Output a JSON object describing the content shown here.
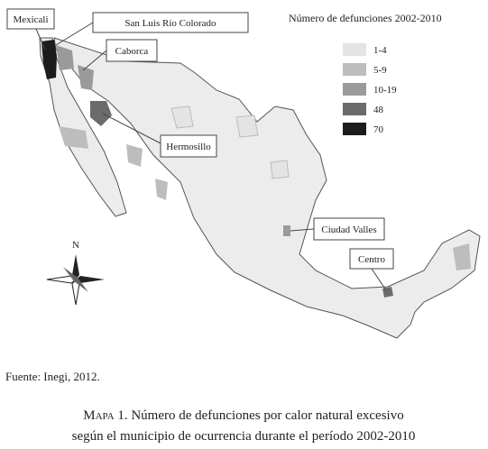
{
  "legend": {
    "title": "Número de defunciones 2002-2010",
    "items": [
      {
        "label": "1-4",
        "color": "#e4e4e4"
      },
      {
        "label": "5-9",
        "color": "#bdbdbd"
      },
      {
        "label": "10-19",
        "color": "#9a9a9a"
      },
      {
        "label": "48",
        "color": "#6b6b6b"
      },
      {
        "label": "70",
        "color": "#1c1c1c"
      }
    ]
  },
  "callouts": [
    "Mexicali",
    "San Luis Río Colorado",
    "Caborca",
    "Hermosillo",
    "Ciudad Valles",
    "Centro"
  ],
  "compass": "N",
  "source": "Fuente: Inegi, 2012.",
  "caption": {
    "label": "Mapa 1.",
    "lines": [
      "Número de defunciones por calor natural excesivo",
      "según el municipio de ocurrencia durante el período 2002-2010"
    ]
  }
}
